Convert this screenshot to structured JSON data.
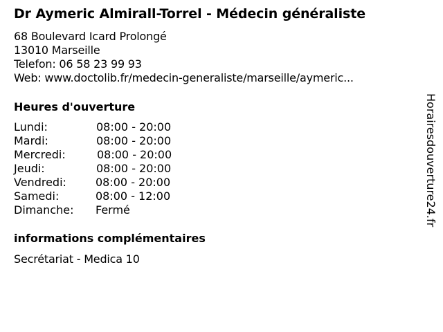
{
  "title": "Dr Aymeric Almirall-Torrel - Médecin généraliste",
  "address": {
    "street": "68 Boulevard Icard Prolongé",
    "city": "13010 Marseille",
    "phone": "Telefon: 06 58 23 99 93",
    "web": "Web: www.doctolib.fr/medecin-generaliste/marseille/aymeric..."
  },
  "hours": {
    "heading": "Heures d'ouverture",
    "days": [
      {
        "day": "Lundi:",
        "time": "08:00 - 20:00"
      },
      {
        "day": "Mardi:",
        "time": "08:00 - 20:00"
      },
      {
        "day": "Mercredi:",
        "time": "08:00 - 20:00"
      },
      {
        "day": "Jeudi:",
        "time": "08:00 - 20:00"
      },
      {
        "day": "Vendredi:",
        "time": "08:00 - 20:00"
      },
      {
        "day": "Samedi:",
        "time": "08:00 - 12:00"
      },
      {
        "day": "Dimanche:",
        "time": "Fermé"
      }
    ]
  },
  "info": {
    "heading": "informations complémentaires",
    "text": "Secrétariat - Medica 10"
  },
  "watermark": "Horairesdouverture24.fr"
}
